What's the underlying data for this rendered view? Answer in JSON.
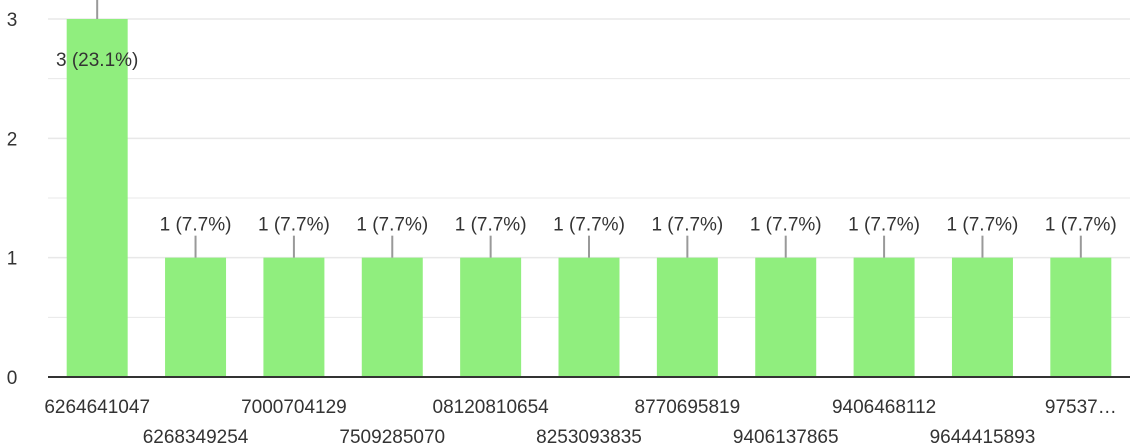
{
  "chart_data": {
    "type": "bar",
    "categories": [
      "6264641047",
      "6268349254",
      "7000704129",
      "7509285070",
      "08120810654",
      "8253093835",
      "8770695819",
      "9406137865",
      "9406468112",
      "9644415893",
      "97537…"
    ],
    "values": [
      3,
      1,
      1,
      1,
      1,
      1,
      1,
      1,
      1,
      1,
      1
    ],
    "data_labels": [
      "3 (23.1%)",
      "1 (7.7%)",
      "1 (7.7%)",
      "1 (7.7%)",
      "1 (7.7%)",
      "1 (7.7%)",
      "1 (7.7%)",
      "1 (7.7%)",
      "1 (7.7%)",
      "1 (7.7%)",
      "1 (7.7%)"
    ],
    "y_ticks": [
      "0",
      "1",
      "2",
      "3"
    ],
    "ylim": [
      0,
      3
    ],
    "grid": true,
    "title": "",
    "xlabel": "",
    "ylabel": "",
    "colors": {
      "bar": "#90ee7e",
      "grid": "#e8e8e8",
      "axis": "#333333",
      "text": "#333333",
      "connector": "#999999"
    }
  }
}
